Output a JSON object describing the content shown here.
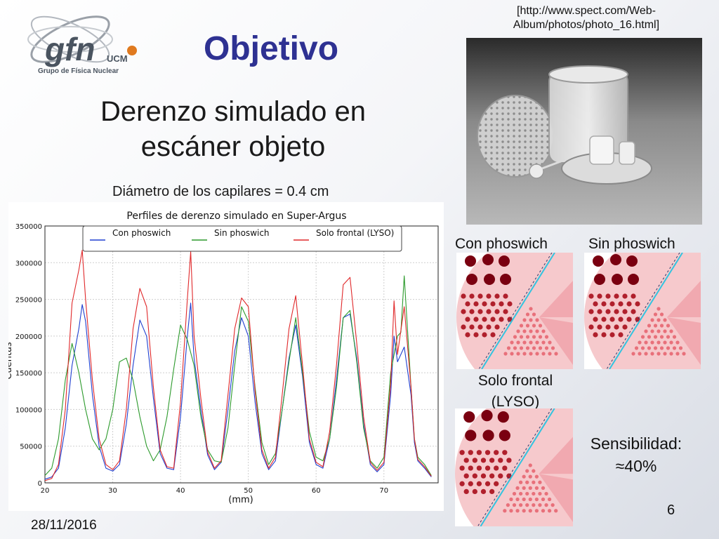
{
  "slide": {
    "title": "Objetivo",
    "subtitle_line1": "Derenzo simulado en",
    "subtitle_line2": "escáner objeto",
    "diameter_note": "Diámetro de los capilares = 0.4 cm",
    "photo_citation_line1": "[http://www.spect.com/Web-",
    "photo_citation_line2": "Album/photos/photo_16.html]",
    "image_labels": {
      "con": "Con phoswich",
      "sin": "Sin phoswich",
      "solo_line1": "Solo frontal",
      "solo_line2": "(LYSO)"
    },
    "sensitivity_line1": "Sensibilidad:",
    "sensitivity_line2": "≈40%",
    "date": "28/11/2016",
    "page_number": "6",
    "logo": {
      "brand": "gfn",
      "sub": "UCM",
      "tagline": "Grupo de Física Nuclear"
    }
  },
  "colors": {
    "title": "#2e3192",
    "con": "#1f3fd0",
    "sin": "#2c9a2c",
    "solo": "#e0282a",
    "reconstruction": "#e8707a",
    "hot_rod": "#7a0010"
  },
  "chart_data": {
    "type": "line",
    "title": "Perfiles de derenzo simulado en Super-Argus",
    "xlabel": "(mm)",
    "ylabel": "Cuentas",
    "xlim": [
      20,
      78
    ],
    "ylim": [
      0,
      350000
    ],
    "xticks": [
      20,
      30,
      40,
      50,
      60,
      70
    ],
    "yticks": [
      0,
      50000,
      100000,
      150000,
      200000,
      250000,
      300000,
      350000
    ],
    "ytick_labels": [
      "0",
      "50000",
      "100000",
      "150000",
      "200000",
      "250000",
      "300000",
      "350000"
    ],
    "grid": true,
    "legend_position": "top",
    "series": [
      {
        "name": "Con phoswich",
        "color": "#1f3fd0",
        "x": [
          20,
          21,
          22,
          23,
          24,
          25,
          25.5,
          26,
          27,
          28,
          29,
          30,
          31,
          32,
          33,
          34,
          35,
          36,
          37,
          38,
          39,
          40,
          41,
          41.5,
          42,
          43,
          44,
          45,
          46,
          47,
          48,
          49,
          50,
          51,
          52,
          53,
          54,
          55,
          56,
          57,
          58,
          59,
          60,
          61,
          62,
          63,
          64,
          65,
          66,
          67,
          68,
          69,
          70,
          71,
          71.5,
          72,
          73,
          74,
          74.5,
          75,
          76,
          77
        ],
        "y": [
          5000,
          8000,
          20000,
          75000,
          160000,
          210000,
          243000,
          220000,
          120000,
          50000,
          20000,
          16000,
          25000,
          80000,
          160000,
          222000,
          200000,
          115000,
          40000,
          20000,
          18000,
          90000,
          200000,
          245000,
          170000,
          100000,
          38000,
          18000,
          28000,
          100000,
          180000,
          225000,
          200000,
          110000,
          40000,
          18000,
          30000,
          100000,
          170000,
          215000,
          145000,
          55000,
          25000,
          20000,
          60000,
          140000,
          225000,
          230000,
          170000,
          80000,
          25000,
          15000,
          25000,
          120000,
          200000,
          165000,
          185000,
          120000,
          55000,
          30000,
          20000,
          8000
        ]
      },
      {
        "name": "Sin phoswich",
        "color": "#2c9a2c",
        "x": [
          20,
          21,
          22,
          23,
          24,
          25,
          26,
          27,
          28,
          29,
          30,
          31,
          32,
          33,
          34,
          35,
          36,
          37,
          38,
          39,
          40,
          41,
          42,
          43,
          44,
          45,
          46,
          47,
          48,
          49,
          50,
          51,
          52,
          53,
          54,
          55,
          56,
          57,
          58,
          59,
          60,
          61,
          62,
          63,
          64,
          65,
          66,
          67,
          68,
          69,
          70,
          71,
          72,
          72.5,
          73,
          74,
          74.5,
          75,
          76,
          77
        ],
        "y": [
          10000,
          20000,
          60000,
          140000,
          190000,
          150000,
          100000,
          60000,
          45000,
          60000,
          100000,
          165000,
          170000,
          140000,
          90000,
          50000,
          30000,
          45000,
          90000,
          155000,
          215000,
          195000,
          160000,
          90000,
          45000,
          30000,
          28000,
          75000,
          160000,
          240000,
          220000,
          130000,
          55000,
          25000,
          40000,
          100000,
          165000,
          225000,
          150000,
          70000,
          35000,
          30000,
          60000,
          130000,
          225000,
          235000,
          165000,
          75000,
          30000,
          20000,
          35000,
          150000,
          200000,
          205000,
          282000,
          130000,
          60000,
          35000,
          25000,
          10000
        ]
      },
      {
        "name": "Solo frontal (LYSO)",
        "color": "#e0282a",
        "x": [
          20,
          21,
          22,
          23,
          24,
          25,
          25.5,
          26,
          27,
          28,
          29,
          30,
          31,
          32,
          33,
          34,
          35,
          36,
          37,
          38,
          39,
          40,
          41,
          41.5,
          42,
          43,
          44,
          45,
          46,
          47,
          48,
          49,
          50,
          51,
          52,
          53,
          54,
          55,
          56,
          57,
          58,
          59,
          60,
          61,
          62,
          63,
          64,
          65,
          66,
          67,
          68,
          69,
          70,
          71,
          71.5,
          72,
          73,
          74,
          74.5,
          75,
          76,
          77
        ],
        "y": [
          3000,
          6000,
          25000,
          100000,
          245000,
          290000,
          317000,
          250000,
          140000,
          60000,
          25000,
          18000,
          30000,
          100000,
          210000,
          265000,
          240000,
          130000,
          45000,
          22000,
          20000,
          110000,
          250000,
          315000,
          200000,
          115000,
          42000,
          20000,
          30000,
          120000,
          210000,
          252000,
          240000,
          125000,
          45000,
          20000,
          35000,
          120000,
          210000,
          255000,
          160000,
          60000,
          28000,
          22000,
          70000,
          160000,
          270000,
          280000,
          190000,
          90000,
          28000,
          17000,
          28000,
          135000,
          248000,
          175000,
          240000,
          130000,
          60000,
          32000,
          22000,
          9000
        ]
      }
    ]
  }
}
